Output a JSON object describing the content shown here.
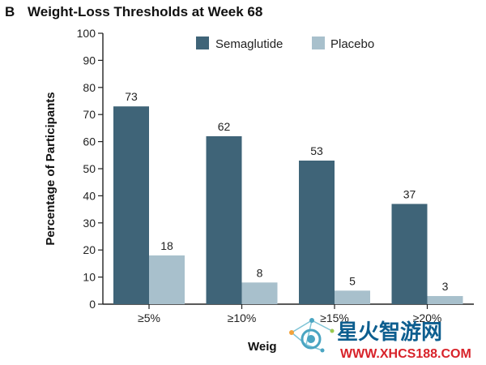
{
  "panel": {
    "letter": "B"
  },
  "chart_data": {
    "type": "bar",
    "title": "Weight-Loss Thresholds at Week 68",
    "xlabel": "Weig",
    "ylabel": "Percentage of Participants",
    "categories": [
      "≥5%",
      "≥10%",
      "≥15%",
      "≥20%"
    ],
    "series": [
      {
        "name": "Semaglutide",
        "values": [
          73,
          62,
          53,
          37
        ],
        "color": "#3f6478"
      },
      {
        "name": "Placebo",
        "values": [
          18,
          8,
          5,
          3
        ],
        "color": "#a8c0cc"
      }
    ],
    "ylim": [
      0,
      100
    ],
    "yticks": [
      0,
      10,
      20,
      30,
      40,
      50,
      60,
      70,
      80,
      90,
      100
    ],
    "grid": false,
    "legend": "top-right"
  },
  "watermark": {
    "text": "星火智游网",
    "url": "WWW.XHCS188.COM",
    "color": "#0d5e8f",
    "accent": "#d8232a"
  }
}
